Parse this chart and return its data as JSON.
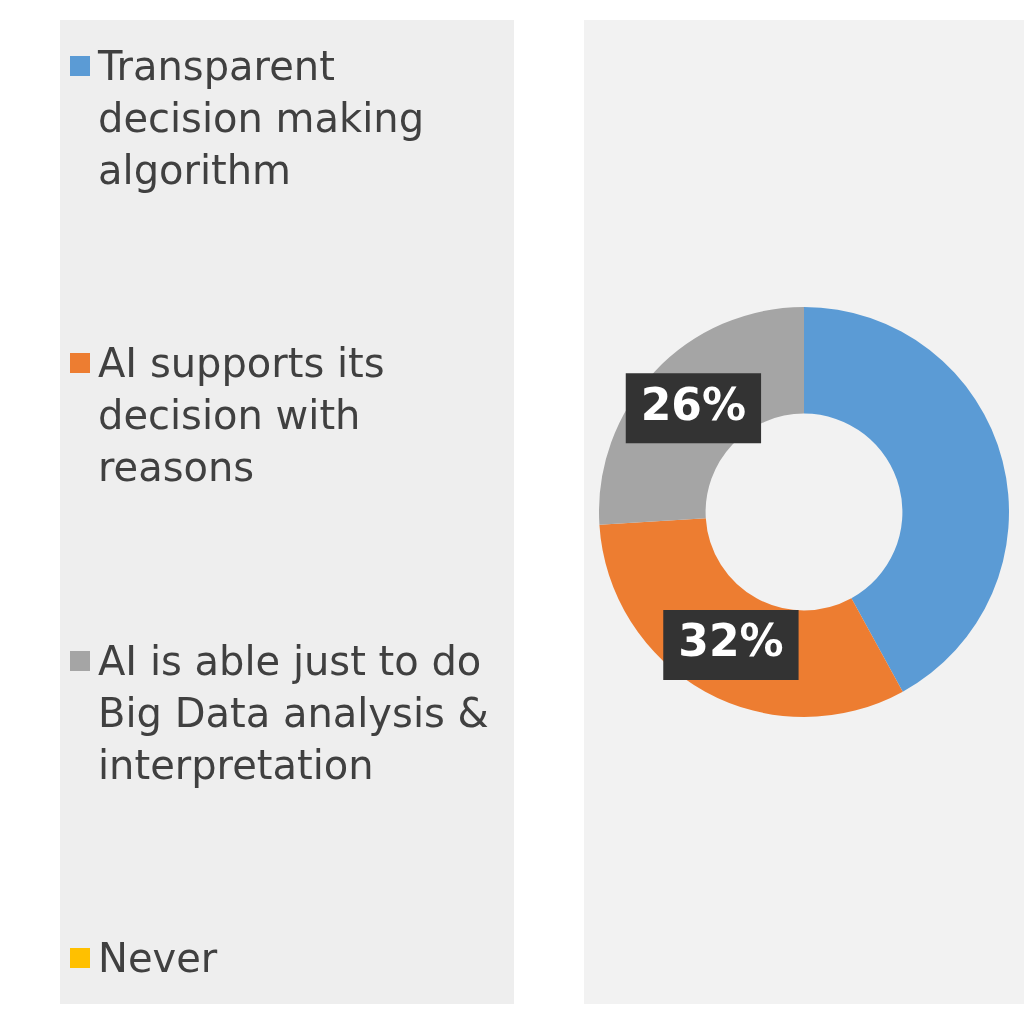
{
  "chart_data": {
    "type": "donut",
    "categories": [
      "Transparent decision making algorithm",
      "AI supports its decision with reasons",
      "AI is able just to do Big Data analysis & interpretation",
      "Never"
    ],
    "values": [
      42,
      32,
      26,
      0
    ],
    "colors": [
      "#5b9bd5",
      "#ed7d31",
      "#a5a5a5",
      "#ffc000"
    ],
    "value_labels": [
      null,
      "32%",
      "26%",
      null
    ],
    "legend": "left"
  }
}
